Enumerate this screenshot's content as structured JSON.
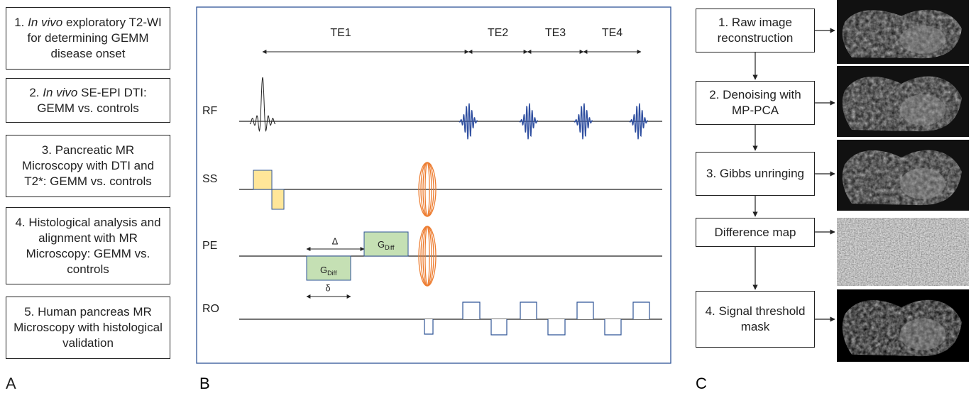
{
  "panel_a": {
    "letter": "A",
    "steps": [
      {
        "number": "1.",
        "emphasis": "In vivo",
        "text": "exploratory T2-WI for determining GEMM disease onset"
      },
      {
        "number": "2.",
        "emphasis": "In vivo",
        "text": "SE-EPI DTI: GEMM vs. controls"
      },
      {
        "number": "3.",
        "text": "Pancreatic MR Microscopy with DTI and T2*: GEMM vs. controls"
      },
      {
        "number": "4.",
        "text": "Histological analysis and alignment with MR Microscopy: GEMM vs. controls"
      },
      {
        "number": "5.",
        "text": "Human pancreas MR Microscopy with histological validation"
      }
    ]
  },
  "panel_b": {
    "letter": "B",
    "echo_times": [
      "TE1",
      "TE2",
      "TE3",
      "TE4"
    ],
    "channels": [
      "RF",
      "SS",
      "PE",
      "RO"
    ],
    "big_delta": "Δ",
    "small_delta": "δ",
    "gradient_symbol": "G",
    "gradient_subscript": "Diff"
  },
  "panel_c": {
    "letter": "C",
    "steps": [
      "1. Raw image reconstruction",
      "2. Denoising with MP-PCA",
      "3. Gibbs unringing",
      "Difference map",
      "4. Signal threshold mask"
    ]
  }
}
